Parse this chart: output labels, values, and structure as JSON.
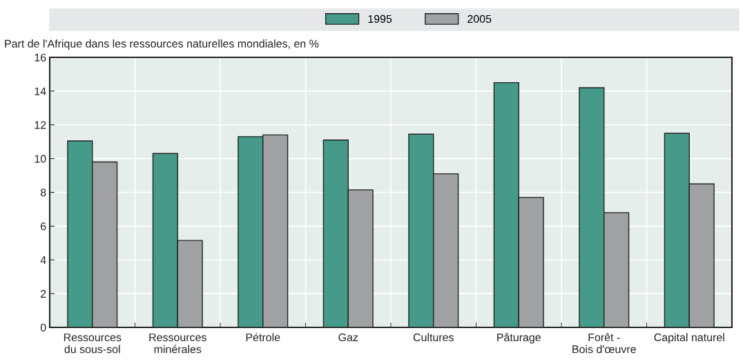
{
  "chart_data": {
    "type": "bar",
    "ylabel": "Part de l'Afrique dans les ressources naturelles mondiales, en %",
    "categories": [
      "Ressources\ndu sous-sol",
      "Ressources\nminérales",
      "Pétrole",
      "Gaz",
      "Cultures",
      "Pâturage",
      "Forêt -\nBois d'œuvre",
      "Capital naturel"
    ],
    "series": [
      {
        "name": "1995",
        "color": "#459a89",
        "values": [
          11.05,
          10.3,
          11.3,
          11.1,
          11.45,
          14.5,
          14.2,
          11.5
        ]
      },
      {
        "name": "2005",
        "color": "#a0a1a3",
        "values": [
          9.8,
          5.15,
          11.4,
          8.15,
          9.1,
          7.7,
          6.8,
          8.5
        ]
      }
    ],
    "ylim": [
      0,
      16
    ],
    "yticks": [
      0,
      2,
      4,
      6,
      8,
      10,
      12,
      14,
      16
    ],
    "grid": true,
    "legend": "top"
  }
}
